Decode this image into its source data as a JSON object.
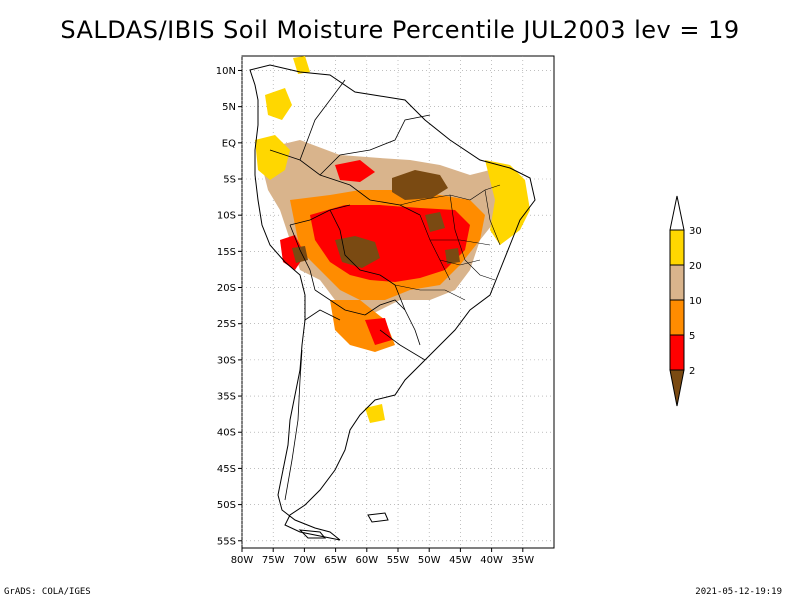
{
  "title": "SALDAS/IBIS Soil Moisture Percentile JUL2003 lev = 19",
  "map": {
    "lon_range": [
      -80,
      -30
    ],
    "lat_range": [
      -56,
      12
    ],
    "x_ticks": [
      "80W",
      "75W",
      "70W",
      "65W",
      "60W",
      "55W",
      "50W",
      "45W",
      "40W",
      "35W"
    ],
    "x_tick_values": [
      -80,
      -75,
      -70,
      -65,
      -60,
      -55,
      -50,
      -45,
      -40,
      -35
    ],
    "y_ticks": [
      "10N",
      "5N",
      "EQ",
      "5S",
      "10S",
      "15S",
      "20S",
      "25S",
      "30S",
      "35S",
      "40S",
      "45S",
      "50S",
      "55S"
    ],
    "y_tick_values": [
      10,
      5,
      0,
      -5,
      -10,
      -15,
      -20,
      -25,
      -30,
      -35,
      -40,
      -45,
      -50,
      -55
    ],
    "grid": "dotted"
  },
  "legend": {
    "labels": [
      "2",
      "5",
      "10",
      "20",
      "30"
    ],
    "colors": [
      "#7a4a12",
      "#ff0000",
      "#ff8c00",
      "#d9b48c",
      "#ffd700",
      "#ffffff"
    ]
  },
  "footer": {
    "left": "GrADS: COLA/IGES",
    "right": "2021-05-12-19:19"
  }
}
